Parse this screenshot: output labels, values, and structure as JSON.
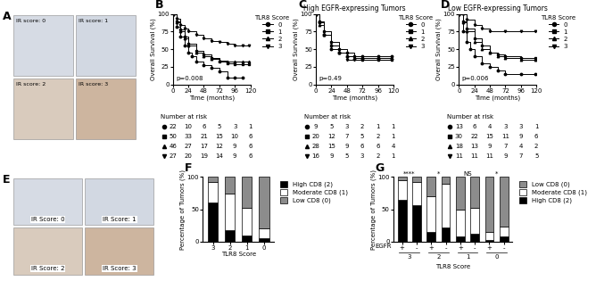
{
  "chart_data": [
    {
      "type": "image",
      "panel": "A",
      "labels": [
        "IR score: 0",
        "IR score: 1",
        "IR score: 2",
        "IR score: 3"
      ]
    },
    {
      "type": "line",
      "panel": "B",
      "line_style": "steps",
      "x_label": "Time (months)",
      "y_label": "Overall Survival (%)",
      "annotation": "p=0.008",
      "legend_title": "TLR8 Score",
      "legend": "upper left",
      "xlim": [
        0,
        120
      ],
      "ylim": [
        0,
        100
      ],
      "xticks": [
        0,
        24,
        48,
        72,
        96,
        120
      ],
      "yticks": [
        0,
        25,
        50,
        75,
        100
      ],
      "series": [
        {
          "name": "0",
          "color": "#000000",
          "marker": "circle",
          "x": [
            0,
            6,
            12,
            18,
            24,
            30,
            36,
            48,
            60,
            72,
            84,
            96,
            108
          ],
          "values": [
            100,
            82,
            68,
            55,
            45,
            40,
            32,
            27,
            23,
            18,
            10,
            10,
            10
          ]
        },
        {
          "name": "1",
          "color": "#000000",
          "marker": "square",
          "x": [
            0,
            6,
            12,
            18,
            24,
            36,
            48,
            60,
            72,
            84,
            96,
            108,
            118
          ],
          "values": [
            100,
            90,
            78,
            68,
            58,
            48,
            42,
            38,
            33,
            30,
            28,
            28,
            28
          ]
        },
        {
          "name": "2",
          "color": "#000000",
          "marker": "triangle-up",
          "x": [
            0,
            6,
            12,
            18,
            24,
            36,
            48,
            60,
            72,
            84,
            96,
            108,
            118
          ],
          "values": [
            100,
            88,
            75,
            65,
            55,
            45,
            40,
            36,
            34,
            33,
            32,
            32,
            32
          ]
        },
        {
          "name": "3",
          "color": "#000000",
          "marker": "triangle-down",
          "x": [
            0,
            6,
            12,
            18,
            24,
            36,
            48,
            60,
            72,
            84,
            96,
            108,
            118
          ],
          "values": [
            100,
            93,
            85,
            80,
            75,
            70,
            65,
            62,
            60,
            58,
            55,
            55,
            55
          ]
        }
      ],
      "risk_table": {
        "title": "Number at risk",
        "x": [
          0,
          24,
          48,
          72,
          96,
          120
        ],
        "rows": [
          [
            22,
            10,
            6,
            5,
            3,
            1
          ],
          [
            50,
            33,
            21,
            15,
            10,
            6
          ],
          [
            46,
            27,
            17,
            12,
            9,
            6
          ],
          [
            27,
            20,
            19,
            14,
            9,
            6
          ]
        ]
      }
    },
    {
      "type": "line",
      "panel": "C",
      "line_style": "steps",
      "title": "High EGFR-expressing Tumors",
      "x_label": "Time (months)",
      "y_label": "Overall Survival (%)",
      "annotation": "p=0.49",
      "legend_title": "TLR8 Score",
      "legend": "upper left",
      "xlim": [
        0,
        120
      ],
      "ylim": [
        0,
        100
      ],
      "xticks": [
        0,
        24,
        48,
        72,
        96,
        120
      ],
      "yticks": [
        0,
        25,
        50,
        75,
        100
      ],
      "series": [
        {
          "name": "0",
          "color": "#000000",
          "marker": "circle",
          "x": [
            0,
            6,
            12,
            24,
            36,
            48,
            72,
            96,
            118
          ],
          "values": [
            100,
            88,
            70,
            50,
            45,
            40,
            40,
            40,
            40
          ]
        },
        {
          "name": "1",
          "color": "#000000",
          "marker": "square",
          "x": [
            0,
            6,
            12,
            24,
            36,
            48,
            60,
            72,
            96,
            118
          ],
          "values": [
            100,
            90,
            75,
            60,
            50,
            45,
            40,
            35,
            35,
            35
          ]
        },
        {
          "name": "2",
          "color": "#000000",
          "marker": "triangle-up",
          "x": [
            0,
            6,
            12,
            24,
            36,
            48,
            60,
            72,
            96,
            118
          ],
          "values": [
            100,
            85,
            70,
            55,
            45,
            40,
            38,
            38,
            38,
            38
          ]
        },
        {
          "name": "3",
          "color": "#000000",
          "marker": "triangle-down",
          "x": [
            0,
            6,
            12,
            24,
            36,
            48,
            60,
            72,
            96,
            118
          ],
          "values": [
            100,
            88,
            70,
            55,
            45,
            35,
            35,
            35,
            35,
            35
          ]
        }
      ],
      "risk_table": {
        "title": "Number at risk",
        "x": [
          0,
          24,
          48,
          72,
          96,
          120
        ],
        "rows": [
          [
            9,
            5,
            3,
            2,
            1,
            1
          ],
          [
            20,
            12,
            7,
            5,
            2,
            1
          ],
          [
            28,
            15,
            9,
            6,
            6,
            4
          ],
          [
            16,
            9,
            5,
            3,
            2,
            1
          ]
        ]
      }
    },
    {
      "type": "line",
      "panel": "D",
      "line_style": "steps",
      "title": "Low EGFR-expressing Tumors",
      "x_label": "Time (months)",
      "y_label": "Overall Survival (%)",
      "annotation": "p=0.006",
      "legend_title": "TLR8 Score",
      "legend": "upper left",
      "xlim": [
        0,
        120
      ],
      "ylim": [
        0,
        100
      ],
      "xticks": [
        0,
        24,
        48,
        72,
        96,
        120
      ],
      "yticks": [
        0,
        25,
        50,
        75,
        100
      ],
      "series": [
        {
          "name": "0",
          "color": "#000000",
          "marker": "circle",
          "x": [
            0,
            6,
            12,
            18,
            24,
            36,
            48,
            60,
            72,
            96,
            118
          ],
          "values": [
            100,
            75,
            60,
            50,
            40,
            30,
            25,
            20,
            15,
            15,
            15
          ]
        },
        {
          "name": "1",
          "color": "#000000",
          "marker": "square",
          "x": [
            0,
            6,
            12,
            24,
            36,
            48,
            60,
            72,
            96,
            118
          ],
          "values": [
            100,
            90,
            80,
            65,
            55,
            45,
            42,
            40,
            38,
            38
          ]
        },
        {
          "name": "2",
          "color": "#000000",
          "marker": "triangle-up",
          "x": [
            0,
            6,
            12,
            24,
            36,
            48,
            60,
            72,
            96,
            118
          ],
          "values": [
            100,
            88,
            75,
            60,
            50,
            45,
            40,
            38,
            35,
            35
          ]
        },
        {
          "name": "3",
          "color": "#000000",
          "marker": "triangle-down",
          "x": [
            0,
            6,
            12,
            24,
            36,
            48,
            72,
            96,
            118
          ],
          "values": [
            100,
            100,
            92,
            85,
            80,
            75,
            75,
            75,
            75
          ]
        }
      ],
      "risk_table": {
        "title": "Number at risk",
        "x": [
          0,
          24,
          48,
          72,
          96,
          120
        ],
        "rows": [
          [
            13,
            6,
            4,
            3,
            3,
            1
          ],
          [
            30,
            22,
            15,
            11,
            9,
            6
          ],
          [
            18,
            13,
            9,
            7,
            4,
            2
          ],
          [
            11,
            11,
            11,
            9,
            7,
            5
          ]
        ]
      }
    },
    {
      "type": "image",
      "panel": "E",
      "labels": [
        "IR Score: 0",
        "IR Score: 1",
        "IR Score: 2",
        "IR Score: 3"
      ]
    },
    {
      "type": "bar",
      "panel": "F",
      "stacked": true,
      "legend": "upper left",
      "x_label": "TLR8 Score",
      "y_label": "Percentage of Tumors (%)",
      "categories": [
        "3",
        "2",
        "1",
        "0"
      ],
      "ylim": [
        0,
        100
      ],
      "yticks": [
        0,
        50,
        100
      ],
      "series": [
        {
          "name": "High CD8 (2)",
          "color": "#000000",
          "values": [
            60,
            18,
            10,
            5
          ]
        },
        {
          "name": "Moderate CD8 (1)",
          "color": "#ffffff",
          "values": [
            33,
            57,
            42,
            15
          ]
        },
        {
          "name": "Low CD8 (0)",
          "color": "#8c8c8c",
          "values": [
            7,
            25,
            48,
            80
          ]
        }
      ]
    },
    {
      "type": "bar",
      "panel": "G",
      "stacked": true,
      "legend": "upper left",
      "x_label": "TLR8 Score",
      "y_label": "Percentage of Tumors (%)",
      "row_label": "EGFR",
      "categories": [
        "+",
        "-",
        "+",
        "-",
        "+",
        "-",
        "+",
        "-"
      ],
      "group_labels": [
        "3",
        "2",
        "1",
        "0"
      ],
      "annotations": [
        "****",
        "*",
        "NS",
        "*"
      ],
      "ylim": [
        0,
        100
      ],
      "yticks": [
        0,
        50,
        100
      ],
      "series": [
        {
          "name": "High CD8 (2)",
          "color": "#000000",
          "values": [
            65,
            57,
            15,
            22,
            8,
            12,
            3,
            8
          ]
        },
        {
          "name": "Moderate CD8 (1)",
          "color": "#ffffff",
          "values": [
            30,
            35,
            55,
            68,
            42,
            40,
            12,
            15
          ]
        },
        {
          "name": "Low CD8 (0)",
          "color": "#8c8c8c",
          "values": [
            5,
            8,
            30,
            10,
            50,
            48,
            85,
            77
          ]
        }
      ]
    }
  ]
}
